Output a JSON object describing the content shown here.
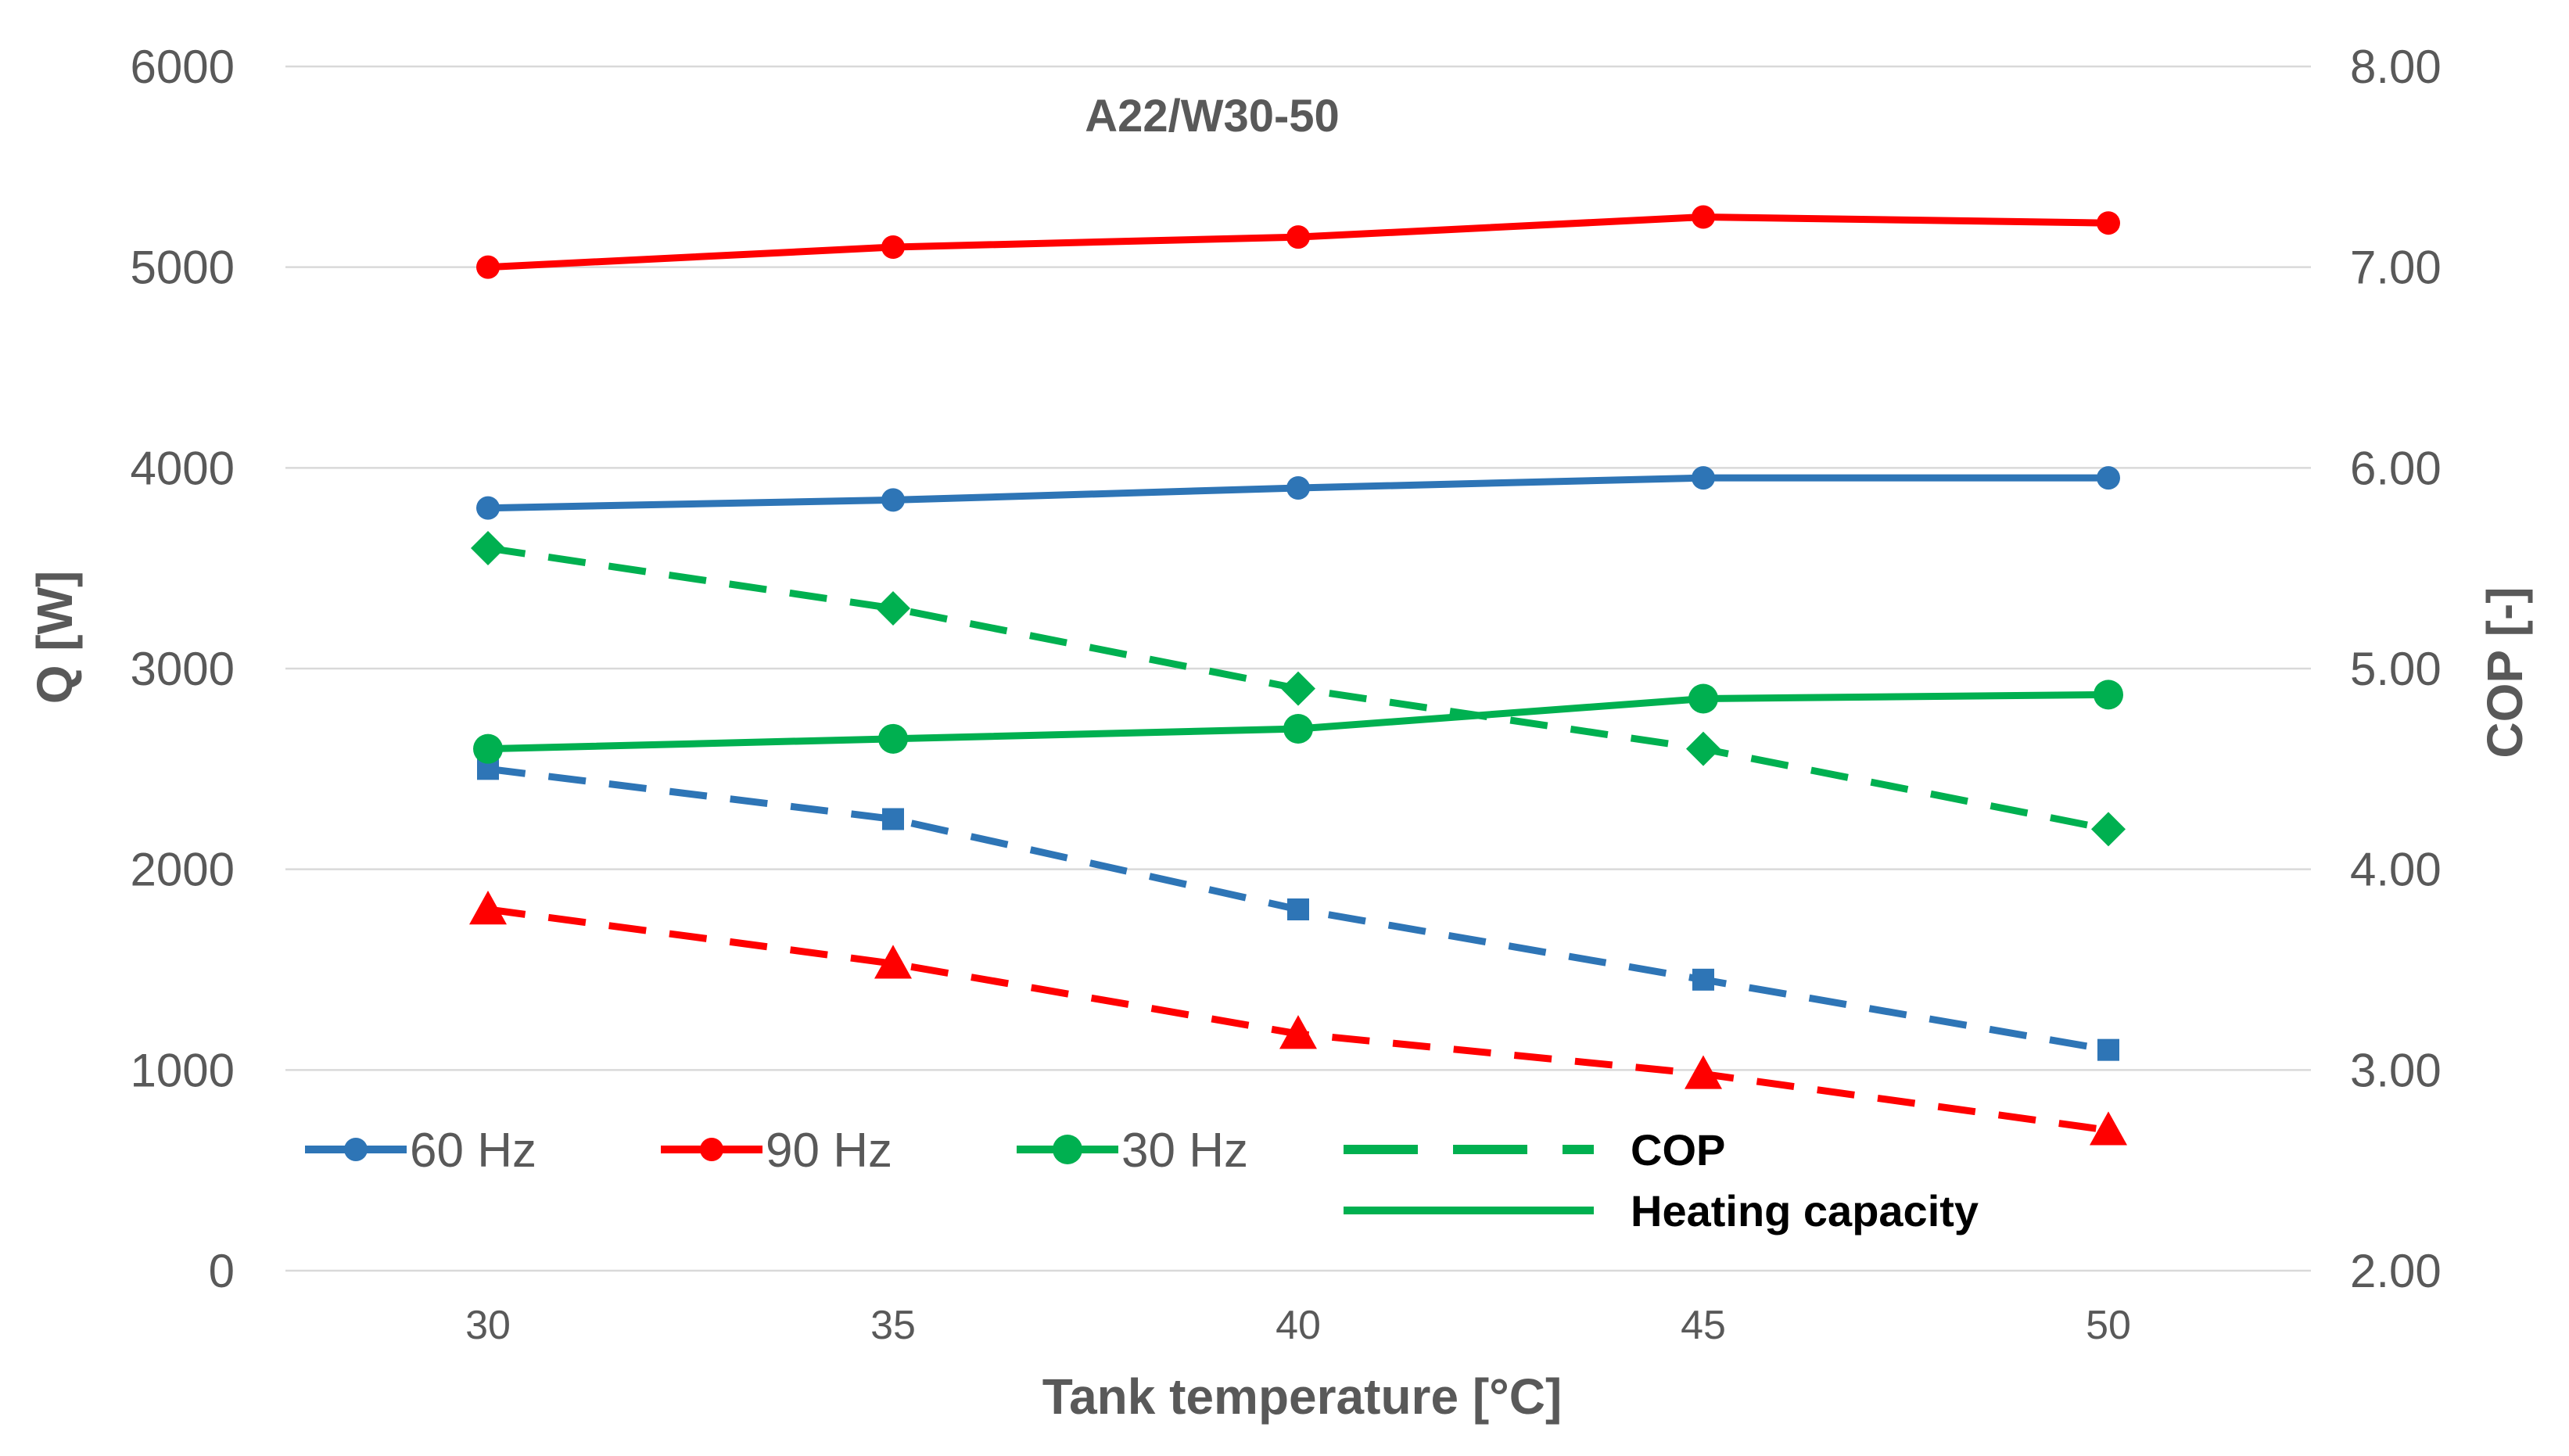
{
  "chart_data": {
    "type": "line",
    "title": "A22/W30-50",
    "xlabel": "Tank temperature  [°C]",
    "ylabel": "Q  [W]",
    "y2label": "COP [-]",
    "x": [
      30,
      35,
      40,
      45,
      50
    ],
    "xlim": [
      27.5,
      52.5
    ],
    "ylim": [
      0,
      6000
    ],
    "y2lim": [
      2.0,
      8.0
    ],
    "yticks": [
      "0",
      "1000",
      "2000",
      "3000",
      "4000",
      "5000",
      "6000"
    ],
    "y2ticks": [
      "2.00",
      "3.00",
      "4.00",
      "5.00",
      "6.00",
      "7.00",
      "8.00"
    ],
    "xticks": [
      "30",
      "35",
      "40",
      "45",
      "50"
    ],
    "grid": true,
    "legend_position": "bottom-left inside",
    "series": [
      {
        "name": "60 Hz",
        "metric": "Heating capacity",
        "axis": "left",
        "color": "#2e75b6",
        "dash": "solid",
        "marker": "circle",
        "values": [
          3800,
          3840,
          3900,
          3950,
          3950
        ]
      },
      {
        "name": "90 Hz",
        "metric": "Heating capacity",
        "axis": "left",
        "color": "#ff0000",
        "dash": "solid",
        "marker": "circle",
        "values": [
          5000,
          5100,
          5150,
          5250,
          5220
        ]
      },
      {
        "name": "30 Hz",
        "metric": "Heating capacity",
        "axis": "left",
        "color": "#00b050",
        "dash": "solid",
        "marker": "circle",
        "values": [
          2600,
          2650,
          2700,
          2850,
          2870
        ]
      },
      {
        "name": "60 Hz",
        "metric": "COP",
        "axis": "right",
        "color": "#2e75b6",
        "dash": "dashed",
        "marker": "square",
        "values": [
          4.5,
          4.25,
          3.8,
          3.45,
          3.1
        ]
      },
      {
        "name": "90 Hz",
        "metric": "COP",
        "axis": "right",
        "color": "#ff0000",
        "dash": "dashed",
        "marker": "triangle",
        "values": [
          3.8,
          3.53,
          3.18,
          2.98,
          2.7
        ]
      },
      {
        "name": "30 Hz",
        "metric": "COP",
        "axis": "right",
        "color": "#00b050",
        "dash": "dashed",
        "marker": "diamond",
        "values": [
          5.6,
          5.3,
          4.9,
          4.6,
          4.2
        ]
      }
    ],
    "legend": [
      {
        "label": "60 Hz",
        "color": "#2e75b6",
        "style": "solid",
        "marker": "circle"
      },
      {
        "label": "90 Hz",
        "color": "#ff0000",
        "style": "solid",
        "marker": "circle"
      },
      {
        "label": "30 Hz",
        "color": "#00b050",
        "style": "solid",
        "marker": "circle"
      },
      {
        "label": "COP",
        "color": "#00b050",
        "style": "dashed",
        "marker": "none"
      },
      {
        "label": "Heating capacity",
        "color": "#00b050",
        "style": "solid",
        "marker": "none"
      }
    ]
  }
}
